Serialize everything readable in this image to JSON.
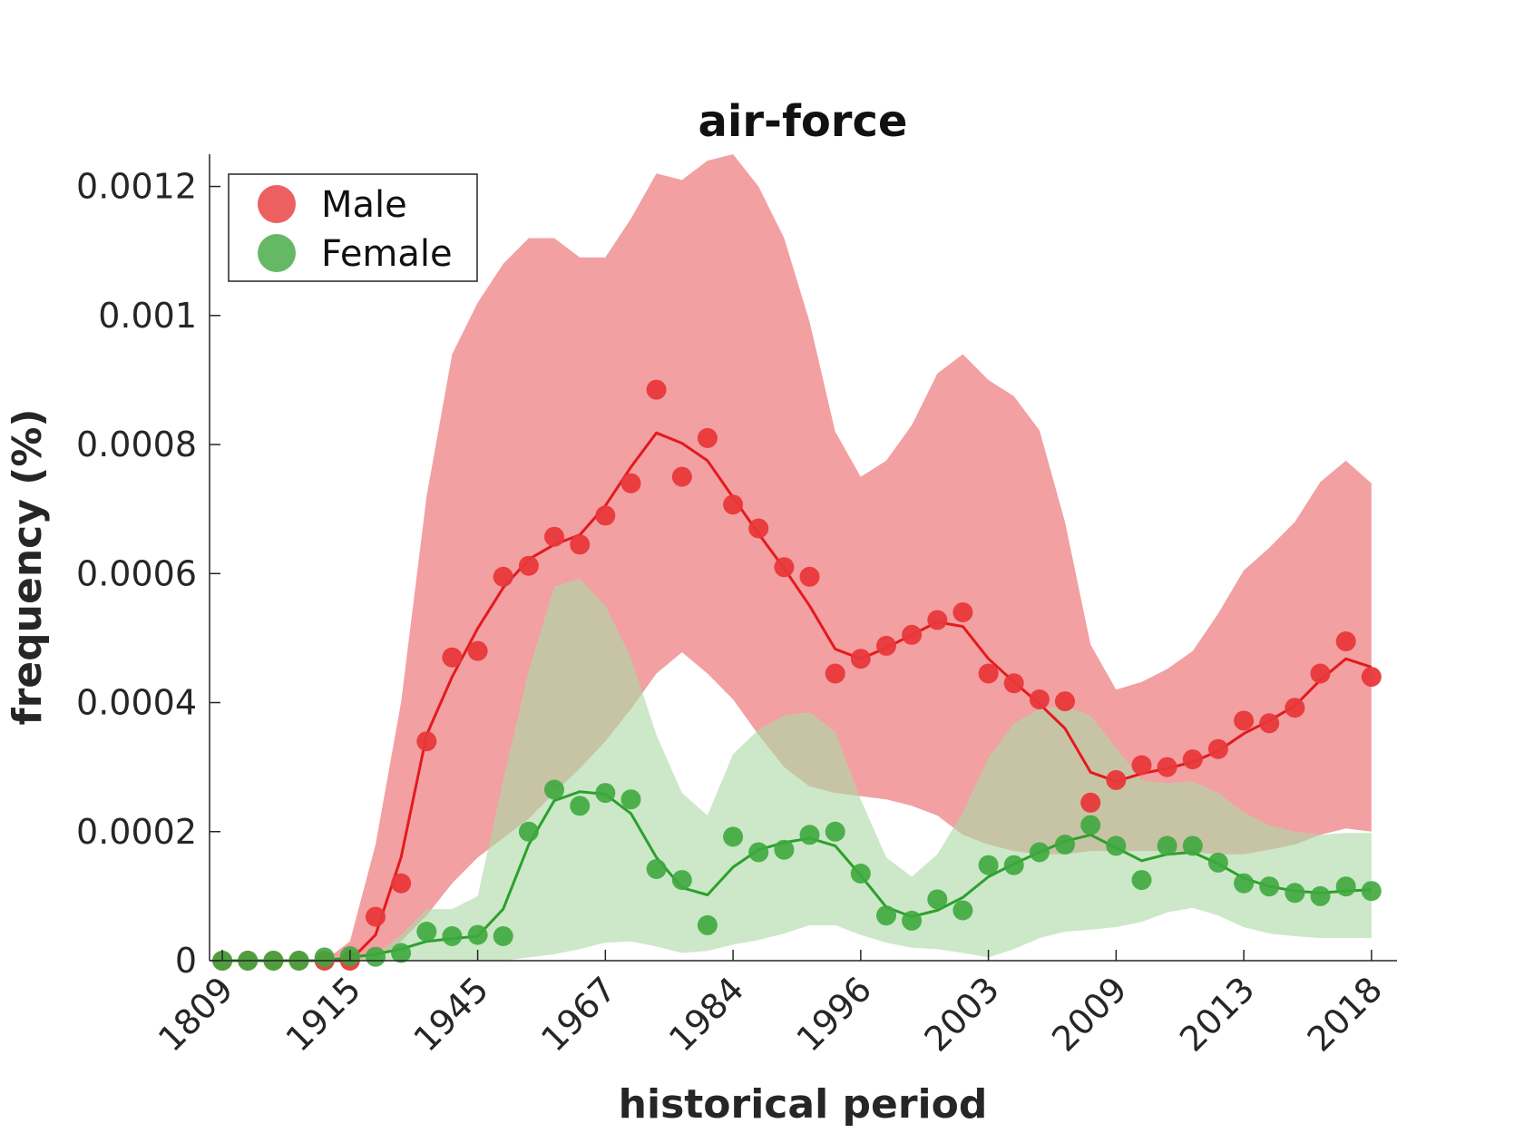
{
  "chart_data": {
    "type": "line",
    "title": "air-force",
    "xlabel": "historical period",
    "ylabel": "frequency (%)",
    "x_tick_labels": [
      "1809",
      "1915",
      "1945",
      "1967",
      "1984",
      "1996",
      "2003",
      "2009",
      "2013",
      "2018"
    ],
    "x_tick_positions": [
      0,
      5,
      10,
      15,
      20,
      25,
      30,
      35,
      40,
      45
    ],
    "xlim": [
      -0.5,
      46
    ],
    "ylim": [
      0,
      0.00125
    ],
    "y_ticks": [
      0,
      0.0002,
      0.0004,
      0.0006,
      0.0008,
      0.001,
      0.0012
    ],
    "y_tick_labels": [
      "0",
      "0.0002",
      "0.0004",
      "0.0006",
      "0.0008",
      "0.001",
      "0.0012"
    ],
    "x": [
      0,
      1,
      2,
      3,
      4,
      5,
      6,
      7,
      8,
      9,
      10,
      11,
      12,
      13,
      14,
      15,
      16,
      17,
      18,
      19,
      20,
      21,
      22,
      23,
      24,
      25,
      26,
      27,
      28,
      29,
      30,
      31,
      32,
      33,
      34,
      35,
      36,
      37,
      38,
      39,
      40,
      41,
      42,
      43,
      44,
      45
    ],
    "legend": {
      "placement": "top-left",
      "entries": [
        "Male",
        "Female"
      ]
    },
    "grid": false,
    "series": [
      {
        "name": "Male",
        "color": "#e41a1c",
        "point_color": "#e8383a",
        "band_color": "#f2a0a2",
        "points": [
          0,
          0,
          0,
          0,
          0,
          0,
          6.8e-05,
          0.00012,
          0.00034,
          0.00047,
          0.00048,
          0.000595,
          0.000612,
          0.000657,
          0.000645,
          0.00069,
          0.00074,
          0.000885,
          0.00075,
          0.00081,
          0.000707,
          0.00067,
          0.00061,
          0.000595,
          0.000445,
          0.000468,
          0.000488,
          0.000505,
          0.000528,
          0.00054,
          0.000445,
          0.00043,
          0.000405,
          0.000402,
          0.000245,
          0.00028,
          0.000303,
          0.0003,
          0.000312,
          0.000328,
          0.000372,
          0.000368,
          0.000392,
          0.000445,
          0.000495,
          0.00044
        ],
        "smooth": [
          0,
          0,
          0,
          0,
          0,
          0,
          4e-05,
          0.00016,
          0.00035,
          0.00044,
          0.000515,
          0.000578,
          0.000622,
          0.000645,
          0.00066,
          0.000705,
          0.000765,
          0.000818,
          0.000802,
          0.000775,
          0.000718,
          0.000662,
          0.000608,
          0.00055,
          0.000483,
          0.000468,
          0.000485,
          0.000505,
          0.000525,
          0.000518,
          0.000468,
          0.000432,
          0.000398,
          0.00036,
          0.000292,
          0.000278,
          0.00029,
          0.000298,
          0.000308,
          0.000325,
          0.000352,
          0.000372,
          0.000395,
          0.000435,
          0.000468,
          0.000455
        ],
        "band_upper": [
          0,
          0,
          0,
          0,
          0,
          3e-05,
          0.00018,
          0.0004,
          0.00072,
          0.00094,
          0.00102,
          0.00108,
          0.00112,
          0.00112,
          0.00109,
          0.00109,
          0.00115,
          0.00122,
          0.00121,
          0.00124,
          0.00125,
          0.0012,
          0.00112,
          0.00099,
          0.00082,
          0.00075,
          0.000775,
          0.00083,
          0.00091,
          0.00094,
          0.0009,
          0.000875,
          0.000822,
          0.00068,
          0.00049,
          0.00042,
          0.000432,
          0.000452,
          0.00048,
          0.000538,
          0.000605,
          0.00064,
          0.00068,
          0.000742,
          0.000775,
          0.00074
        ],
        "band_lower": [
          0,
          0,
          0,
          0,
          0,
          0,
          0,
          3e-05,
          7e-05,
          0.00012,
          0.00016,
          0.00019,
          0.00022,
          0.00026,
          0.000298,
          0.00034,
          0.00039,
          0.000445,
          0.000478,
          0.000445,
          0.000405,
          0.00035,
          0.0003,
          0.00027,
          0.00026,
          0.000255,
          0.00025,
          0.00024,
          0.000225,
          0.000195,
          0.00018,
          0.00017,
          0.000165,
          0.000165,
          0.00017,
          0.00017,
          0.00017,
          0.00017,
          0.000168,
          0.000165,
          0.000165,
          0.000172,
          0.00018,
          0.000195,
          0.000205,
          0.0002
        ]
      },
      {
        "name": "Female",
        "color": "#2ca02c",
        "point_color": "#3ea83e",
        "band_color": "#acdaa6",
        "points": [
          0,
          0,
          0,
          0,
          5e-06,
          7e-06,
          6e-06,
          1.2e-05,
          4.5e-05,
          3.8e-05,
          4e-05,
          3.8e-05,
          0.0002,
          0.000265,
          0.00024,
          0.00026,
          0.00025,
          0.000142,
          0.000125,
          5.5e-05,
          0.000192,
          0.000168,
          0.000172,
          0.000195,
          0.0002,
          0.000135,
          7e-05,
          6.2e-05,
          9.5e-05,
          7.8e-05,
          0.000148,
          0.000148,
          0.000168,
          0.00018,
          0.00021,
          0.000178,
          0.000125,
          0.000178,
          0.000178,
          0.000152,
          0.00012,
          0.000115,
          0.000105,
          0.0001,
          0.000115,
          0.000108
        ],
        "smooth": [
          0,
          0,
          0,
          0,
          0,
          5e-06,
          1e-05,
          1.8e-05,
          3e-05,
          3.4e-05,
          3.8e-05,
          8e-05,
          0.00018,
          0.000248,
          0.000262,
          0.000258,
          0.000228,
          0.00016,
          0.000113,
          0.000102,
          0.000145,
          0.000172,
          0.000183,
          0.00019,
          0.000178,
          0.000132,
          8.3e-05,
          6.8e-05,
          7.8e-05,
          9.8e-05,
          0.00013,
          0.00015,
          0.000168,
          0.000185,
          0.000195,
          0.000175,
          0.000155,
          0.000165,
          0.000168,
          0.00015,
          0.000128,
          0.000115,
          0.000108,
          0.000105,
          0.000108,
          0.00011
        ],
        "band_upper": [
          0,
          0,
          0,
          0,
          0,
          0,
          1e-05,
          4e-05,
          8e-05,
          8e-05,
          0.0001,
          0.00028,
          0.00045,
          0.00058,
          0.000592,
          0.00055,
          0.00047,
          0.00035,
          0.00026,
          0.000225,
          0.00032,
          0.000358,
          0.00038,
          0.000385,
          0.000355,
          0.00025,
          0.00016,
          0.00013,
          0.000165,
          0.00023,
          0.000315,
          0.000368,
          0.00039,
          0.000395,
          0.00038,
          0.00033,
          0.00028,
          0.000275,
          0.000278,
          0.00026,
          0.00023,
          0.00021,
          0.0002,
          0.000195,
          0.000198,
          0.000198
        ],
        "band_lower": [
          0,
          0,
          0,
          0,
          0,
          0,
          0,
          0,
          0,
          0,
          0,
          0,
          5e-06,
          1e-05,
          1.8e-05,
          2.8e-05,
          3e-05,
          2.2e-05,
          1.2e-05,
          1.5e-05,
          2.5e-05,
          3.2e-05,
          4.2e-05,
          5.5e-05,
          5.5e-05,
          4e-05,
          2.8e-05,
          2e-05,
          1.8e-05,
          1.2e-05,
          5e-06,
          1.8e-05,
          3.5e-05,
          4.5e-05,
          4.8e-05,
          5.2e-05,
          6e-05,
          7.5e-05,
          8.2e-05,
          7e-05,
          5.2e-05,
          4.2e-05,
          3.8e-05,
          3.5e-05,
          3.5e-05,
          3.5e-05
        ]
      }
    ]
  }
}
